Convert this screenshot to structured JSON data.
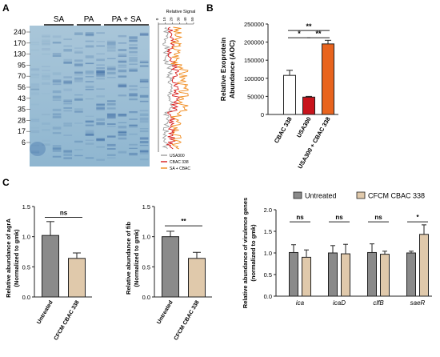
{
  "panel_labels": [
    "A",
    "B",
    "C"
  ],
  "gel": {
    "groups": [
      "SA",
      "PA",
      "PA + SA"
    ],
    "markers": [
      "240",
      "170",
      "130",
      "95",
      "70",
      "56",
      "43",
      "35",
      "28",
      "17",
      "6"
    ],
    "lanes": 11
  },
  "colors": {
    "untreated": "#8a8a8a",
    "treated": "#e0c9ab",
    "cbac338_bar": "#ffffff",
    "usa300_bar": "#c8141c",
    "combo_bar": "#e8641e",
    "trace_usa300": "#9e9e9e",
    "trace_cbac": "#d61a1a",
    "trace_sa_cbac": "#f08a1c"
  },
  "chart_data": [
    {
      "id": "A-trace",
      "type": "line",
      "title": "Relative Signal",
      "x_ticks": [
        "0",
        "10",
        "20",
        "30",
        "40",
        "50"
      ],
      "series": [
        {
          "name": "USA300",
          "color_key": "trace_usa300",
          "offset": 12,
          "amp": 8,
          "seed": 1
        },
        {
          "name": "CBAC 338",
          "color_key": "trace_cbac",
          "offset": 20,
          "amp": 10,
          "seed": 2
        },
        {
          "name": "SA + CBAC",
          "color_key": "trace_sa_cbac",
          "offset": 28,
          "amp": 14,
          "seed": 3
        }
      ]
    },
    {
      "id": "B",
      "type": "bar",
      "ylabel": "Relative Exoprotein\nAbundance (AOC)",
      "ylim": [
        0,
        250000
      ],
      "yticks": [
        "0",
        "50000",
        "100000",
        "150000",
        "200000",
        "250000"
      ],
      "categories": [
        "CBAC 338",
        "USA300",
        "USA300 + CBAC 338"
      ],
      "values": [
        108000,
        48000,
        195000
      ],
      "errors": [
        14000,
        2000,
        10000
      ],
      "color_keys": [
        "cbac338_bar",
        "usa300_bar",
        "combo_bar"
      ],
      "significance": [
        {
          "from": 0,
          "to": 2,
          "label": "**",
          "level": 232000
        },
        {
          "from": 0,
          "to": 1,
          "label": "*",
          "level": 212000
        },
        {
          "from": 1,
          "to": 2,
          "label": "**",
          "level": 212000
        }
      ]
    },
    {
      "id": "C1",
      "type": "bar",
      "ylabel_lines": [
        "Relative abundance of agrA",
        "(Normalized to gmk)"
      ],
      "ylim": [
        0,
        1.5
      ],
      "yticks": [
        "0.0",
        "0.5",
        "1.0",
        "1.5"
      ],
      "categories": [
        "Untreated",
        "CFCM CBAC 338"
      ],
      "values": [
        1.02,
        0.64
      ],
      "errors": [
        0.23,
        0.09
      ],
      "significance": {
        "label": "ns",
        "level": 1.32
      }
    },
    {
      "id": "C2",
      "type": "bar",
      "ylabel_lines": [
        "Relative abundance of fib",
        "(Normalized to gmk)"
      ],
      "ylim": [
        0,
        1.5
      ],
      "yticks": [
        "0.0",
        "0.5",
        "1.0",
        "1.5"
      ],
      "categories": [
        "Untreated",
        "CFCM CBAC 338"
      ],
      "values": [
        1.0,
        0.64
      ],
      "errors": [
        0.09,
        0.1
      ],
      "significance": {
        "label": "**",
        "level": 1.18
      }
    },
    {
      "id": "C3",
      "type": "bar",
      "ylabel_lines": [
        "Relative abundance of virulence genes",
        "(normalized to gmk)"
      ],
      "ylim": [
        0,
        2.0
      ],
      "yticks": [
        "0.0",
        "0.5",
        "1.0",
        "1.5",
        "2.0"
      ],
      "categories": [
        "ica",
        "icaD",
        "clfB",
        "saeR"
      ],
      "legend": [
        "Untreated",
        "CFCM CBAC 338"
      ],
      "legend_position": "top",
      "series": [
        {
          "name": "Untreated",
          "values": [
            1.01,
            1.0,
            1.01,
            1.0
          ],
          "errors": [
            0.18,
            0.17,
            0.2,
            0.04
          ]
        },
        {
          "name": "CFCM CBAC 338",
          "values": [
            0.9,
            0.98,
            0.97,
            1.43
          ],
          "errors": [
            0.17,
            0.22,
            0.07,
            0.22
          ]
        }
      ],
      "significance": [
        "ns",
        "ns",
        "ns",
        "*"
      ],
      "sig_level": 1.72
    }
  ]
}
